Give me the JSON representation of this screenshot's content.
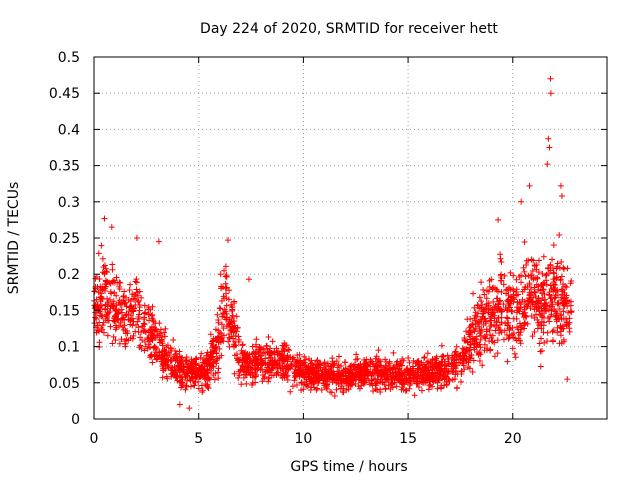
{
  "chart_data": {
    "type": "scatter",
    "title": "Day 224 of 2020, SRMTID for receiver hett",
    "xlabel": "GPS time / hours",
    "ylabel": "SRMTID / TECUs",
    "xlim": [
      0,
      24.5
    ],
    "ylim": [
      0,
      0.5
    ],
    "xticks": [
      0,
      5,
      10,
      15,
      20
    ],
    "yticks": [
      0,
      0.05,
      0.1,
      0.15,
      0.2,
      0.25,
      0.3,
      0.35,
      0.4,
      0.45,
      0.5
    ],
    "xtick_labels": [
      "0",
      "5",
      "10",
      "15",
      "20"
    ],
    "ytick_labels": [
      "0",
      "0.05",
      "0.1",
      "0.15",
      "0.2",
      "0.25",
      "0.3",
      "0.35",
      "0.4",
      "0.45",
      "0.5"
    ],
    "grid": true,
    "marker": "+",
    "color": "#ff0000",
    "series": [
      {
        "name": "SRMTID",
        "envelope_hours": [
          0,
          0.5,
          1,
          1.5,
          2,
          2.5,
          3,
          3.5,
          4,
          4.5,
          5,
          5.5,
          6,
          6.3,
          6.7,
          7,
          7.5,
          8,
          9,
          10,
          11,
          12,
          13,
          14,
          15,
          16,
          17,
          17.5,
          18,
          18.5,
          19,
          19.5,
          20,
          20.5,
          21,
          21.5,
          22,
          22.5,
          22.8
        ],
        "envelope_median": [
          0.16,
          0.17,
          0.15,
          0.14,
          0.15,
          0.13,
          0.11,
          0.08,
          0.07,
          0.065,
          0.065,
          0.07,
          0.12,
          0.16,
          0.12,
          0.08,
          0.075,
          0.08,
          0.08,
          0.065,
          0.06,
          0.06,
          0.065,
          0.065,
          0.06,
          0.065,
          0.07,
          0.08,
          0.11,
          0.13,
          0.14,
          0.16,
          0.15,
          0.16,
          0.17,
          0.16,
          0.17,
          0.16,
          0.15
        ],
        "envelope_spread": [
          0.05,
          0.06,
          0.05,
          0.04,
          0.05,
          0.04,
          0.035,
          0.03,
          0.025,
          0.022,
          0.022,
          0.025,
          0.05,
          0.06,
          0.045,
          0.03,
          0.028,
          0.03,
          0.025,
          0.02,
          0.02,
          0.02,
          0.022,
          0.022,
          0.02,
          0.022,
          0.025,
          0.03,
          0.04,
          0.045,
          0.05,
          0.06,
          0.055,
          0.055,
          0.06,
          0.06,
          0.065,
          0.055,
          0.05
        ],
        "outliers": [
          [
            0.5,
            0.277
          ],
          [
            0.85,
            0.265
          ],
          [
            2.05,
            0.25
          ],
          [
            3.1,
            0.245
          ],
          [
            6.4,
            0.247
          ],
          [
            7.4,
            0.193
          ],
          [
            19.3,
            0.275
          ],
          [
            20.4,
            0.3
          ],
          [
            20.8,
            0.322
          ],
          [
            21.65,
            0.352
          ],
          [
            21.7,
            0.387
          ],
          [
            21.75,
            0.375
          ],
          [
            21.8,
            0.47
          ],
          [
            21.82,
            0.45
          ],
          [
            22.3,
            0.322
          ],
          [
            22.35,
            0.308
          ],
          [
            4.1,
            0.02
          ],
          [
            4.55,
            0.015
          ],
          [
            10.35,
            0.04
          ],
          [
            20.1,
            0.09
          ],
          [
            22.6,
            0.055
          ]
        ],
        "approx_point_count": 2600,
        "point_estimation_note": "dense scatter; values approximated from median and spread envelopes"
      }
    ]
  }
}
